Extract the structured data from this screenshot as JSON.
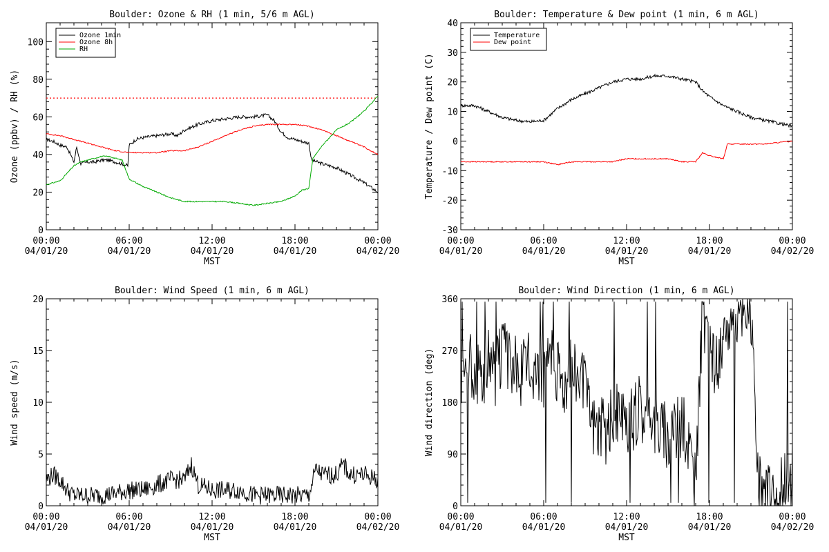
{
  "chart_data": [
    {
      "type": "line",
      "title": "Boulder: Ozone & RH (1 min, 5/6 m AGL)",
      "ylabel": "Ozone (ppbv) / RH (%)",
      "xlabel": "MST",
      "ylim": [
        0,
        110
      ],
      "yticks": [
        0,
        20,
        40,
        60,
        80,
        100
      ],
      "xticks": [
        {
          "top": "00:00",
          "bottom": "04/01/20"
        },
        {
          "top": "06:00",
          "bottom": "04/01/20"
        },
        {
          "top": "12:00",
          "bottom": "04/01/20"
        },
        {
          "top": "18:00",
          "bottom": "04/01/20"
        },
        {
          "top": "00:00",
          "bottom": "04/02/20"
        }
      ],
      "xlim_hours": [
        0,
        24
      ],
      "legend": [
        "Ozone 1min",
        "Ozone 8h",
        "RH"
      ],
      "legend_placement": "top-left",
      "reference_line": {
        "value": 70,
        "color": "#ff0000",
        "style": "dotted"
      },
      "series": [
        {
          "name": "Ozone 1min",
          "color": "#000000",
          "x": [
            0,
            0.5,
            1,
            1.5,
            2,
            2.2,
            2.5,
            3,
            3.5,
            4,
            4.5,
            5,
            5.5,
            5.9,
            6,
            6.5,
            7,
            8,
            9,
            9.5,
            10,
            11,
            12,
            13,
            14,
            15,
            16,
            16.5,
            17,
            17.5,
            18,
            18.5,
            19,
            19.2,
            20,
            21,
            22,
            23,
            24
          ],
          "y": [
            48,
            47,
            45,
            44,
            36,
            44,
            35,
            36,
            36,
            37,
            37,
            36,
            35,
            34,
            45,
            48,
            49,
            50,
            51,
            50,
            53,
            56,
            58,
            59,
            60,
            60,
            61,
            58,
            52,
            49,
            48,
            47,
            46,
            37,
            35,
            33,
            29,
            25,
            20
          ]
        },
        {
          "name": "Ozone 8h",
          "color": "#ff0000",
          "x": [
            0,
            1,
            2,
            3,
            4,
            5,
            6,
            7,
            8,
            9,
            10,
            11,
            12,
            13,
            14,
            15,
            16,
            17,
            18,
            19,
            20,
            21,
            22,
            23,
            24
          ],
          "y": [
            51,
            50,
            48,
            46,
            44,
            42,
            41,
            41,
            41,
            42,
            42,
            44,
            47,
            50,
            53,
            55,
            56,
            56,
            56,
            55,
            53,
            50,
            47,
            44,
            40
          ]
        },
        {
          "name": "RH",
          "color": "#00aa00",
          "x": [
            0,
            0.5,
            1,
            1.5,
            2,
            2.5,
            3,
            3.5,
            4,
            4.5,
            5,
            5.5,
            6,
            6.5,
            7,
            8,
            9,
            10,
            11,
            12,
            13,
            14,
            15,
            16,
            17,
            18,
            18.5,
            19,
            19.3,
            20,
            21,
            22,
            23,
            23.5,
            24
          ],
          "y": [
            24,
            25,
            26,
            30,
            34,
            36,
            37,
            38,
            39,
            39,
            38,
            37,
            27,
            25,
            23,
            20,
            17,
            15,
            15,
            15,
            15,
            14,
            13,
            14,
            15,
            18,
            21,
            22,
            38,
            45,
            53,
            57,
            63,
            67,
            71
          ]
        }
      ]
    },
    {
      "type": "line",
      "title": "Boulder: Temperature & Dew point (1 min, 6 m AGL)",
      "ylabel": "Temperature / Dew point (C)",
      "xlabel": "MST",
      "ylim": [
        -30,
        40
      ],
      "yticks": [
        -30,
        -20,
        -10,
        0,
        10,
        20,
        30,
        40
      ],
      "xticks": [
        {
          "top": "00:00",
          "bottom": "04/01/20"
        },
        {
          "top": "06:00",
          "bottom": "04/01/20"
        },
        {
          "top": "12:00",
          "bottom": "04/01/20"
        },
        {
          "top": "18:00",
          "bottom": "04/01/20"
        },
        {
          "top": "00:00",
          "bottom": "04/02/20"
        }
      ],
      "xlim_hours": [
        0,
        24
      ],
      "legend": [
        "Temperature",
        "Dew point"
      ],
      "legend_placement": "top-left",
      "series": [
        {
          "name": "Temperature",
          "color": "#000000",
          "x": [
            0,
            1,
            2,
            3,
            4,
            5,
            6,
            6.5,
            7,
            8,
            9,
            10,
            11,
            12,
            13,
            14,
            15,
            16,
            17,
            17.5,
            18,
            19,
            20,
            21,
            22,
            23,
            24
          ],
          "y": [
            12,
            12,
            10,
            8,
            7,
            6.5,
            7,
            9,
            11,
            14,
            16,
            18,
            20,
            21,
            21,
            22,
            22,
            21,
            20,
            17,
            15,
            12,
            10,
            8,
            7,
            6,
            5
          ]
        },
        {
          "name": "Dew point",
          "color": "#ff0000",
          "x": [
            0,
            1,
            2,
            3,
            4,
            5,
            6,
            7,
            8,
            9,
            10,
            11,
            12,
            13,
            14,
            15,
            16,
            17,
            17.5,
            18,
            19,
            19.3,
            20,
            21,
            22,
            23,
            24
          ],
          "y": [
            -7,
            -7,
            -7,
            -7,
            -7,
            -7,
            -7,
            -8,
            -7,
            -7,
            -7,
            -7,
            -6,
            -6,
            -6,
            -6,
            -7,
            -7,
            -4,
            -5,
            -6,
            -1,
            -1,
            -1,
            -1,
            -0.5,
            0
          ]
        }
      ]
    },
    {
      "type": "line",
      "title": "Boulder: Wind Speed (1 min, 6 m AGL)",
      "ylabel": "Wind speed (m/s)",
      "xlabel": "MST",
      "ylim": [
        0,
        20
      ],
      "yticks": [
        0,
        5,
        10,
        15,
        20
      ],
      "xticks": [
        {
          "top": "00:00",
          "bottom": "04/01/20"
        },
        {
          "top": "06:00",
          "bottom": "04/01/20"
        },
        {
          "top": "12:00",
          "bottom": "04/01/20"
        },
        {
          "top": "18:00",
          "bottom": "04/01/20"
        },
        {
          "top": "00:00",
          "bottom": "04/02/20"
        }
      ],
      "xlim_hours": [
        0,
        24
      ],
      "series": [
        {
          "name": "",
          "color": "#000000",
          "x": [
            0,
            0.5,
            1,
            1.5,
            2,
            3,
            4,
            5,
            6,
            7,
            8,
            9,
            10,
            10.5,
            11,
            12,
            13,
            14,
            15,
            16,
            17,
            18,
            19,
            19.5,
            20,
            21,
            21.5,
            22,
            23,
            24
          ],
          "y": [
            2.5,
            3,
            2.5,
            1.5,
            1,
            1,
            1,
            1.2,
            1.5,
            1.5,
            2,
            2.5,
            2.5,
            4,
            2,
            1.5,
            1.5,
            1.5,
            1,
            1,
            1,
            1,
            1,
            3.5,
            3,
            3,
            4,
            3,
            3,
            2.5
          ]
        }
      ]
    },
    {
      "type": "line",
      "title": "Boulder: Wind Direction (1 min, 6 m AGL)",
      "ylabel": "Wind direction (deg)",
      "xlabel": "MST",
      "ylim": [
        0,
        360
      ],
      "yticks": [
        0,
        90,
        180,
        270,
        360
      ],
      "xticks": [
        {
          "top": "00:00",
          "bottom": "04/01/20"
        },
        {
          "top": "06:00",
          "bottom": "04/01/20"
        },
        {
          "top": "12:00",
          "bottom": "04/01/20"
        },
        {
          "top": "18:00",
          "bottom": "04/01/20"
        },
        {
          "top": "00:00",
          "bottom": "04/02/20"
        }
      ],
      "xlim_hours": [
        0,
        24
      ],
      "series": [
        {
          "name": "",
          "color": "#000000",
          "x": [
            0,
            0.5,
            1,
            1.5,
            2,
            2.5,
            3,
            3.5,
            4,
            4.5,
            5,
            5.5,
            6,
            6.5,
            7,
            7.5,
            8,
            8.5,
            9,
            9.5,
            10,
            10.5,
            11,
            11.5,
            12,
            12.5,
            13,
            13.5,
            14,
            14.5,
            15,
            15.5,
            16,
            16.5,
            17,
            17.5,
            18,
            18.5,
            19,
            19.5,
            20,
            20.5,
            21,
            21.5,
            22,
            22.5,
            23,
            23.5,
            24
          ],
          "y": [
            230,
            250,
            240,
            230,
            250,
            230,
            270,
            250,
            240,
            230,
            250,
            240,
            230,
            250,
            240,
            220,
            230,
            240,
            200,
            150,
            140,
            130,
            160,
            150,
            130,
            150,
            170,
            160,
            150,
            140,
            120,
            130,
            140,
            120,
            30,
            340,
            260,
            250,
            270,
            330,
            320,
            330,
            340,
            40,
            20,
            20,
            30,
            40,
            50
          ]
        }
      ]
    }
  ]
}
